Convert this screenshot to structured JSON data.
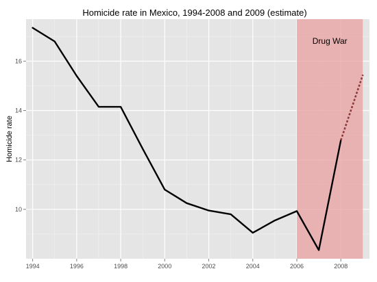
{
  "chart_data": {
    "type": "line",
    "title": "Homicide rate in Mexico, 1994-2008 and 2009 (estimate)",
    "xlabel": "",
    "ylabel": "Homicide rate",
    "xlim": [
      1993.7,
      2009.3
    ],
    "ylim": [
      8.0,
      17.7
    ],
    "x_ticks": [
      1994,
      1996,
      1998,
      2000,
      2002,
      2004,
      2006,
      2008
    ],
    "y_ticks": [
      10,
      12,
      14,
      16
    ],
    "grid": true,
    "series": [
      {
        "style": "solid",
        "color": "#000000",
        "x": [
          1994,
          1995,
          1996,
          1997,
          1998,
          1999,
          2000,
          2001,
          2002,
          2003,
          2004,
          2005,
          2006,
          2007,
          2008
        ],
        "y": [
          17.35,
          16.8,
          15.4,
          14.15,
          14.15,
          12.45,
          10.8,
          10.25,
          9.95,
          9.8,
          9.05,
          9.55,
          9.93,
          8.35,
          12.8
        ]
      },
      {
        "style": "dotted",
        "color": "#8b3a3a",
        "x": [
          2008,
          2009
        ],
        "y": [
          12.8,
          15.45
        ]
      }
    ],
    "shaded_regions": [
      {
        "x_start": 2006,
        "x_end": 2009,
        "color": "#e8a0a0",
        "label": "Drug War"
      }
    ]
  }
}
